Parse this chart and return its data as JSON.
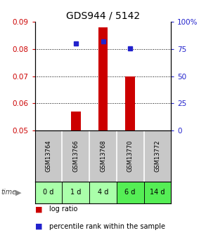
{
  "title": "GDS944 / 5142",
  "samples": [
    "GSM13764",
    "GSM13766",
    "GSM13768",
    "GSM13770",
    "GSM13772"
  ],
  "time_labels": [
    "0 d",
    "1 d",
    "4 d",
    "6 d",
    "14 d"
  ],
  "log_ratio": [
    null,
    0.057,
    0.088,
    0.07,
    null
  ],
  "percentile_rank": [
    null,
    80,
    82,
    75.5,
    null
  ],
  "ylim_left": [
    0.05,
    0.09
  ],
  "ylim_right": [
    0,
    100
  ],
  "yticks_left": [
    0.05,
    0.06,
    0.07,
    0.08,
    0.09
  ],
  "yticks_right": [
    0,
    25,
    50,
    75,
    100
  ],
  "bar_color": "#cc0000",
  "dot_color": "#2222cc",
  "bar_width": 0.35,
  "bg_color_samples": "#c8c8c8",
  "time_row_colors": [
    "#aaffaa",
    "#aaffaa",
    "#aaffaa",
    "#55ee55",
    "#55ee55"
  ],
  "left_color": "#cc0000",
  "right_color": "#2222cc",
  "title_fontsize": 10,
  "tick_fontsize": 7.5,
  "sample_fontsize": 6,
  "time_fontsize": 7,
  "legend_fontsize": 7
}
